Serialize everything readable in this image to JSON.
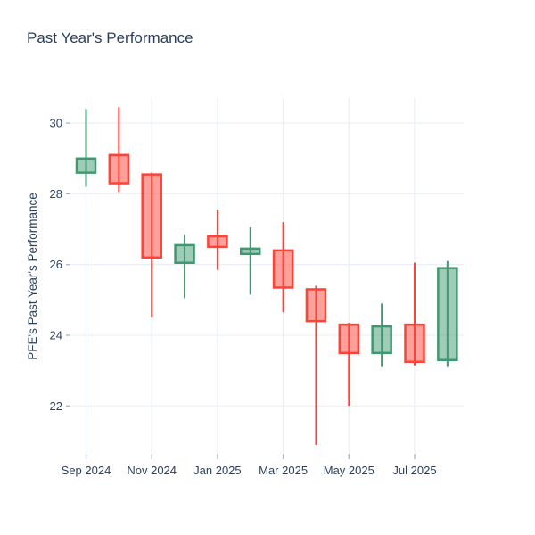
{
  "chart_data": {
    "type": "candlestick",
    "title": "Past Year's Performance",
    "ylabel": "PFE's Past Year's Performance",
    "xlabel": "",
    "ticker": "PFE",
    "categories": [
      "Sep 2024",
      "Oct 2024",
      "Nov 2024",
      "Dec 2024",
      "Jan 2025",
      "Feb 2025",
      "Mar 2025",
      "Apr 2025",
      "May 2025",
      "Jun 2025",
      "Jul 2025",
      "Aug 2025"
    ],
    "open": [
      28.6,
      29.1,
      28.55,
      26.05,
      26.8,
      26.3,
      26.4,
      25.3,
      24.3,
      23.5,
      24.3,
      23.3
    ],
    "high": [
      30.4,
      30.45,
      28.6,
      26.85,
      27.55,
      27.05,
      27.2,
      25.4,
      24.35,
      24.9,
      26.05,
      26.1
    ],
    "low": [
      28.2,
      28.05,
      24.5,
      25.05,
      25.85,
      25.15,
      24.65,
      20.9,
      22.0,
      23.1,
      23.15,
      23.1
    ],
    "close": [
      29.0,
      28.3,
      26.2,
      26.55,
      26.5,
      26.45,
      25.35,
      24.4,
      23.5,
      24.25,
      23.25,
      25.9
    ],
    "xtick_indices": [
      0,
      2,
      4,
      6,
      8,
      10
    ],
    "xtick_labels": [
      "Sep 2024",
      "Nov 2024",
      "Jan 2025",
      "Mar 2025",
      "May 2025",
      "Jul 2025"
    ],
    "ytick_values": [
      22,
      24,
      26,
      28,
      30
    ],
    "ylim": [
      20.67,
      30.71
    ],
    "grid": true,
    "legend": "none",
    "colors": {
      "increasing_line": "#3D9970",
      "increasing_fill": "rgba(61,153,112,0.5)",
      "decreasing_line": "#FF4136",
      "decreasing_fill": "rgba(255,65,54,0.5)",
      "grid": "#EBF0F8",
      "text": "#2a3f5f",
      "tick": "#A8B4C8",
      "background": "#ffffff"
    }
  }
}
